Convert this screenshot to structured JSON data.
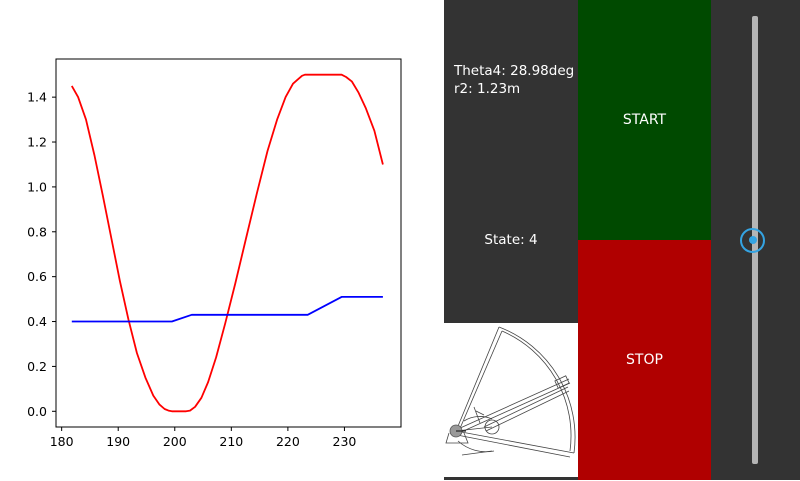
{
  "info": {
    "theta4": "Theta4: 28.98deg",
    "r2": "r2: 1.23m",
    "state": "State: 4"
  },
  "buttons": {
    "start_label": "START",
    "stop_label": "STOP"
  },
  "slider": {
    "value": 0.5
  },
  "colors": {
    "start": "#004a00",
    "stop": "#b00000",
    "panel": "#333333",
    "accent": "#34a4e3"
  },
  "chart_data": {
    "type": "line",
    "xlim": [
      179,
      240
    ],
    "ylim": [
      -0.07,
      1.57
    ],
    "xticks": [
      180,
      190,
      200,
      210,
      220,
      230
    ],
    "yticks": [
      0.0,
      0.2,
      0.4,
      0.6,
      0.8,
      1.0,
      1.2,
      1.4
    ],
    "series": [
      {
        "color": "#ff0000",
        "x": [
          181.8,
          182.9,
          184.3,
          185.8,
          187.3,
          188.8,
          190.3,
          191.8,
          193.3,
          194.8,
          196.2,
          197.3,
          198.2,
          198.9,
          199.5,
          202.0,
          202.7,
          203.6,
          204.7,
          205.9,
          207.3,
          208.9,
          210.7,
          212.6,
          214.5,
          216.4,
          218.1,
          219.6,
          220.9,
          221.8,
          222.5,
          223.0,
          229.5,
          230.3,
          231.3,
          232.5,
          233.8,
          235.3,
          236.8
        ],
        "y": [
          1.45,
          1.4,
          1.3,
          1.14,
          0.96,
          0.77,
          0.58,
          0.41,
          0.26,
          0.15,
          0.07,
          0.03,
          0.01,
          0.003,
          0.0,
          0.0,
          0.003,
          0.02,
          0.06,
          0.13,
          0.24,
          0.39,
          0.57,
          0.77,
          0.97,
          1.16,
          1.3,
          1.4,
          1.46,
          1.48,
          1.495,
          1.5,
          1.5,
          1.49,
          1.47,
          1.42,
          1.35,
          1.25,
          1.1
        ]
      },
      {
        "color": "#0000ff",
        "x": [
          181.8,
          199.5,
          203.0,
          223.5,
          229.5,
          236.8
        ],
        "y": [
          0.4,
          0.4,
          0.43,
          0.43,
          0.51,
          0.51
        ]
      }
    ]
  }
}
